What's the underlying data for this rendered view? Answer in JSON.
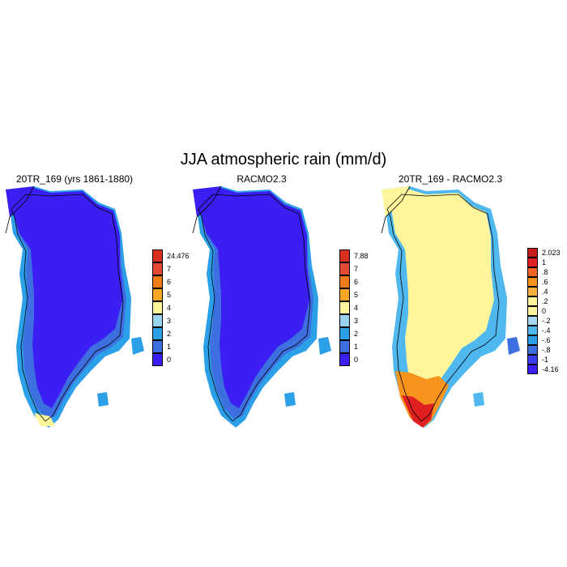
{
  "title": "JJA atmospheric rain (mm/d)",
  "panels": [
    {
      "id": "20tr",
      "title": "20TR_169 (yrs 1861-1880)",
      "colorbar": {
        "labels": [
          "24.476",
          "7",
          "6",
          "5",
          "4",
          "3",
          "2",
          "1",
          "0"
        ],
        "colors": [
          "#d7301f",
          "#e34a33",
          "#f07c18",
          "#f6a623",
          "#fff59d",
          "#9ad3f0",
          "#2b9fe8",
          "#3e6fe0",
          "#3a1ef2"
        ]
      }
    },
    {
      "id": "racmo",
      "title": "RACMO2.3",
      "colorbar": {
        "labels": [
          "7.88",
          "7",
          "6",
          "5",
          "4",
          "3",
          "2",
          "1",
          "0"
        ],
        "colors": [
          "#d7301f",
          "#e34a33",
          "#f07c18",
          "#f6a623",
          "#fff59d",
          "#9ad3f0",
          "#2b9fe8",
          "#3e6fe0",
          "#3a1ef2"
        ]
      }
    },
    {
      "id": "diff",
      "title": "20TR_169 - RACMO2.3",
      "colorbar": {
        "labels": [
          "2.023",
          "1",
          ".8",
          ".6",
          ".4",
          ".2",
          "0",
          "-.2",
          "-.4",
          "-.6",
          "-.8",
          "-1",
          "-4.16"
        ],
        "colors": [
          "#c51b1b",
          "#e02020",
          "#f26522",
          "#f7941d",
          "#fbb040",
          "#fff59d",
          "#fff59d",
          "#a6d8f0",
          "#4fb8ef",
          "#2b9fe8",
          "#3e6fe0",
          "#3a3ef0",
          "#3a1ef2"
        ]
      }
    }
  ]
}
